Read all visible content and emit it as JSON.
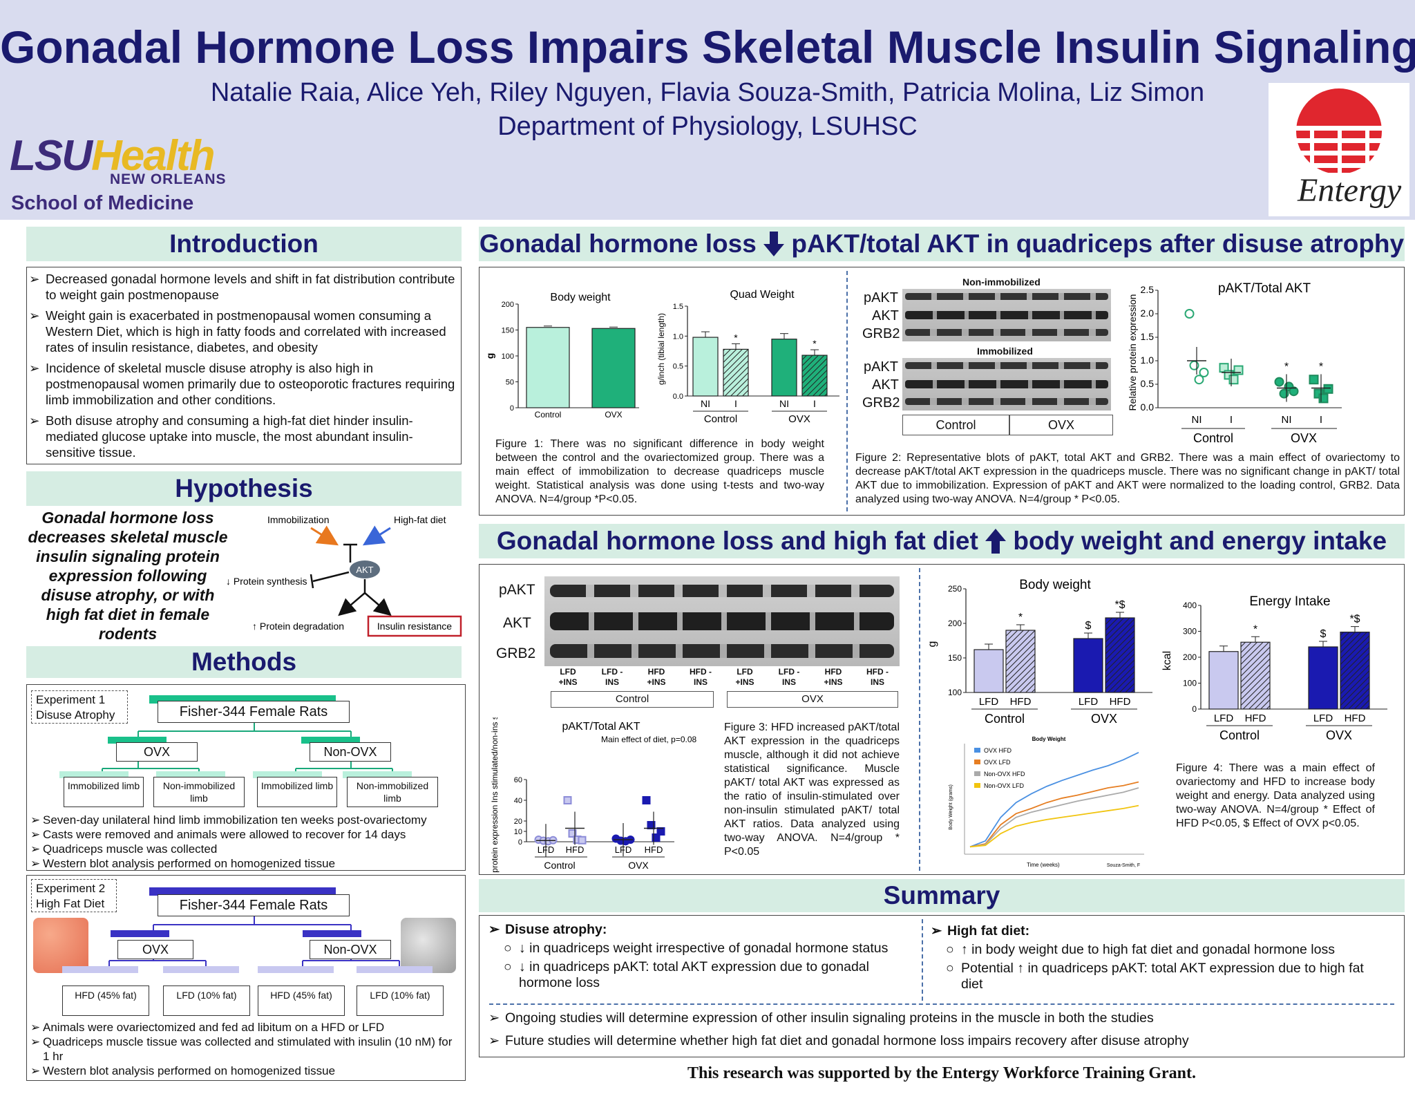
{
  "header": {
    "title": "Gonadal Hormone Loss Impairs Skeletal Muscle Insulin Signaling",
    "authors": "Natalie Raia, Alice Yeh, Riley Nguyen, Flavia Souza-Smith, Patricia Molina, Liz Simon",
    "department": "Department of Physiology, LSUHSC",
    "lsu_logo": {
      "word1": "LSU",
      "word2": "Health",
      "line2": "NEW ORLEANS",
      "line3": "School of Medicine"
    },
    "entergy_logo": "Entergy"
  },
  "intro": {
    "title": "Introduction",
    "bullets": [
      "Decreased gonadal hormone levels and shift in fat distribution contribute to weight gain postmenopause",
      "Weight gain is exacerbated in postmenopausal women consuming a Western Diet, which is high in fatty foods and correlated with increased rates of insulin resistance, diabetes, and obesity",
      "Incidence of skeletal muscle disuse atrophy is also high in postmenopausal women primarily due to osteoporotic fractures requiring limb immobilization and other conditions.",
      "Both disuse atrophy and consuming a high-fat diet hinder insulin-mediated glucose uptake into muscle, the most abundant insulin-sensitive tissue."
    ]
  },
  "hypothesis": {
    "title": "Hypothesis",
    "text": "Gonadal hormone loss decreases skeletal muscle insulin signaling protein expression following disuse atrophy, or with high fat diet in female rodents",
    "diagram": {
      "immobilization": "Immobilization",
      "high_fat_diet": "High-fat diet",
      "akt": "AKT",
      "protein_synthesis": "↓ Protein synthesis",
      "protein_degradation": "↑ Protein degradation",
      "insulin_resistance": "Insulin resistance"
    }
  },
  "methods": {
    "title": "Methods",
    "exp1": {
      "label": "Experiment 1 Disuse Atrophy",
      "root": "Fisher-344 Female Rats",
      "groups": [
        "OVX",
        "Non-OVX"
      ],
      "leaves": [
        "Immobilized limb",
        "Non-immobilized limb",
        "Immobilized limb",
        "Non-immobilized limb"
      ],
      "bullets": [
        "Seven-day unilateral hind limb immobilization ten weeks post-ovariectomy",
        "Casts were removed and animals were allowed to recover for 14 days",
        "Quadriceps muscle was collected",
        "Western blot analysis performed on homogenized tissue"
      ]
    },
    "exp2": {
      "label": "Experiment 2 High Fat Diet",
      "root": "Fisher-344 Female Rats",
      "groups": [
        "OVX",
        "Non-OVX"
      ],
      "leaves": [
        "HFD (45% fat)",
        "LFD (10% fat)",
        "HFD (45% fat)",
        "LFD (10% fat)"
      ],
      "bullets": [
        "Animals were ovariectomized and fed ad libitum on a HFD or LFD",
        "Quadriceps muscle tissue was collected and stimulated with insulin (10 nM) for 1 hr",
        "Western blot analysis performed on homogenized tissue"
      ]
    }
  },
  "result1": {
    "title_left": "Gonadal hormone loss",
    "title_right": "pAKT/total AKT in quadriceps after disuse atrophy",
    "fig1_caption": "Figure 1: There was no significant difference in body weight between the control and the ovariectomized group. There was a main effect of immobilization to decrease quadriceps muscle weight. Statistical analysis was done using t-tests and two-way ANOVA. N=4/group *P<0.05.",
    "fig2_caption": "Figure 2: Representative blots of pAKT, total AKT and GRB2. There was a main effect of ovariectomy to decrease pAKT/total AKT expression in the quadriceps muscle. There was no significant change in pAKT/ total AKT due to immobilization. Expression of pAKT and AKT were normalized to the loading control, GRB2. Data analyzed using two-way ANOVA. N=4/group * P<0.05.",
    "blot": {
      "non_immob": "Non-immobilized",
      "immob": "Immobilized",
      "rows": [
        "pAKT",
        "AKT",
        "GRB2"
      ],
      "groups": [
        "Control",
        "OVX"
      ]
    }
  },
  "result2": {
    "title_left": "Gonadal hormone loss and high fat diet",
    "title_right": "body weight and energy intake",
    "blot_rows": [
      "pAKT",
      "AKT",
      "GRB2"
    ],
    "blot_lanes": [
      "LFD +INS",
      "LFD -INS",
      "HFD +INS",
      "HFD -INS",
      "LFD +INS",
      "LFD -INS",
      "HFD +INS",
      "HFD -INS"
    ],
    "blot_groups": [
      "Control",
      "OVX"
    ],
    "fig3_caption": "Figure 3: HFD increased pAKT/total AKT expression in the quadriceps muscle, although it did not achieve statistical significance. Muscle pAKT/ total AKT was expressed as the ratio of insulin-stimulated over non-insulin stimulated pAKT/ total AKT ratios. Data analyzed using two-way ANOVA. N=4/group * P<0.05",
    "fig4_caption": "Figure 4: There was a main effect of ovariectomy and HFD to increase body weight and energy. Data analyzed using two-way ANOVA. N=4/group * Effect of HFD P<0.05, $ Effect of OVX p<0.05."
  },
  "summary": {
    "title": "Summary",
    "disuse_title": "Disuse atrophy:",
    "disuse_items": [
      "↓ in quadriceps weight irrespective of gonadal hormone status",
      "↓ in quadriceps pAKT: total AKT expression due to gonadal hormone loss"
    ],
    "hfd_title": "High fat diet:",
    "hfd_items": [
      "↑ in body weight due to high fat diet and gonadal hormone loss",
      "Potential ↑ in quadriceps pAKT: total AKT expression due to high fat diet"
    ],
    "future": [
      "Ongoing studies will determine expression of other insulin signaling proteins in the muscle in both the studies",
      "Future studies will determine whether high fat diet and gonadal hormone loss impairs recovery after disuse atrophy"
    ]
  },
  "footer": "This research was supported by the Entergy Workforce Training Grant.",
  "chart_data": [
    {
      "id": "fig1a",
      "type": "bar",
      "title": "Body weight",
      "ylabel": "g",
      "categories": [
        "Control",
        "OVX"
      ],
      "values": [
        155,
        153
      ],
      "ylim": [
        0,
        200
      ],
      "yticks": [
        0,
        50,
        100,
        150,
        200
      ],
      "colors": [
        "#b9f0dc",
        "#1fb07a"
      ]
    },
    {
      "id": "fig1b",
      "type": "bar",
      "title": "Quad Weight",
      "ylabel": "g/inch (tibial length)",
      "groups": [
        "Control",
        "OVX"
      ],
      "categories": [
        "NI",
        "I",
        "NI",
        "I"
      ],
      "values": [
        0.98,
        0.78,
        0.95,
        0.68
      ],
      "ylim": [
        0,
        1.5
      ],
      "yticks": [
        "0.0",
        "0.5",
        "1.0",
        "1.5"
      ],
      "annotations": [
        "",
        "*",
        "",
        "*"
      ]
    },
    {
      "id": "fig2",
      "type": "scatter",
      "title": "pAKT/Total AKT",
      "ylabel": "Relative protein expression",
      "groups": [
        "Control",
        "OVX"
      ],
      "categories": [
        "NI",
        "I",
        "NI",
        "I"
      ],
      "means": [
        1.0,
        0.75,
        0.42,
        0.42
      ],
      "ylim": [
        0,
        2.5
      ],
      "yticks": [
        "0.0",
        "0.5",
        "1.0",
        "1.5",
        "2.0",
        "2.5"
      ],
      "points": [
        [
          2.0,
          0.9,
          0.6,
          0.75
        ],
        [
          0.85,
          0.7,
          0.6,
          0.8
        ],
        [
          0.55,
          0.3,
          0.45,
          0.35
        ],
        [
          0.6,
          0.3,
          0.2,
          0.4
        ]
      ],
      "annotations": [
        "",
        "",
        "*",
        "*"
      ]
    },
    {
      "id": "fig3",
      "type": "scatter",
      "title": "pAKT/Total AKT",
      "subtitle": "Main effect of diet, p=0.08",
      "ylabel": "Relative protein expression Ins stimulated/non-ins stimulated",
      "groups": [
        "Control",
        "OVX"
      ],
      "categories": [
        "LFD",
        "HFD",
        "LFD",
        "HFD"
      ],
      "means": [
        1.2,
        13,
        2,
        13
      ],
      "ylim": [
        0,
        60
      ],
      "yticks": [
        0,
        10,
        20,
        40,
        60
      ],
      "points": [
        [
          2,
          1,
          0.5,
          1.5
        ],
        [
          40,
          8,
          2,
          1.5
        ],
        [
          3,
          1,
          0.5,
          2
        ],
        [
          40,
          16,
          4,
          10
        ]
      ]
    },
    {
      "id": "fig4a",
      "type": "bar",
      "title": "Body weight",
      "ylabel": "g",
      "groups": [
        "Control",
        "OVX"
      ],
      "categories": [
        "LFD",
        "HFD",
        "LFD",
        "HFD"
      ],
      "values": [
        162,
        190,
        178,
        208
      ],
      "ylim": [
        100,
        250
      ],
      "yticks": [
        100,
        150,
        200,
        250
      ],
      "annotations": [
        "",
        "*",
        "$",
        "*$"
      ]
    },
    {
      "id": "fig4b",
      "type": "bar",
      "title": "Energy Intake",
      "ylabel": "kcal",
      "groups": [
        "Control",
        "OVX"
      ],
      "categories": [
        "LFD",
        "HFD",
        "LFD",
        "HFD"
      ],
      "values": [
        222,
        258,
        240,
        297
      ],
      "ylim": [
        0,
        400
      ],
      "yticks": [
        0,
        100,
        200,
        300,
        400
      ],
      "annotations": [
        "",
        "*",
        "$",
        "*$"
      ]
    },
    {
      "id": "fig4c",
      "type": "line",
      "title": "Body Weight",
      "xlabel": "Time (weeks)",
      "ylabel": "Body Weight (grams)",
      "credit": "Souza-Smith, F",
      "series": [
        {
          "name": "OVX HFD",
          "color": "#4a90e2",
          "values": [
            100,
            108,
            140,
            160,
            172,
            182,
            190,
            197,
            204,
            210,
            218,
            228
          ]
        },
        {
          "name": "OVX LFD",
          "color": "#e67e22",
          "values": [
            100,
            104,
            130,
            145,
            152,
            160,
            166,
            170,
            175,
            180,
            183,
            188
          ]
        },
        {
          "name": "Non-OVX HFD",
          "color": "#aaaaaa",
          "values": [
            100,
            103,
            125,
            140,
            147,
            152,
            157,
            162,
            166,
            170,
            174,
            180
          ]
        },
        {
          "name": "Non-OVX LFD",
          "color": "#f1c40f",
          "values": [
            100,
            102,
            118,
            128,
            133,
            137,
            140,
            143,
            146,
            149,
            152,
            156
          ]
        }
      ]
    }
  ]
}
